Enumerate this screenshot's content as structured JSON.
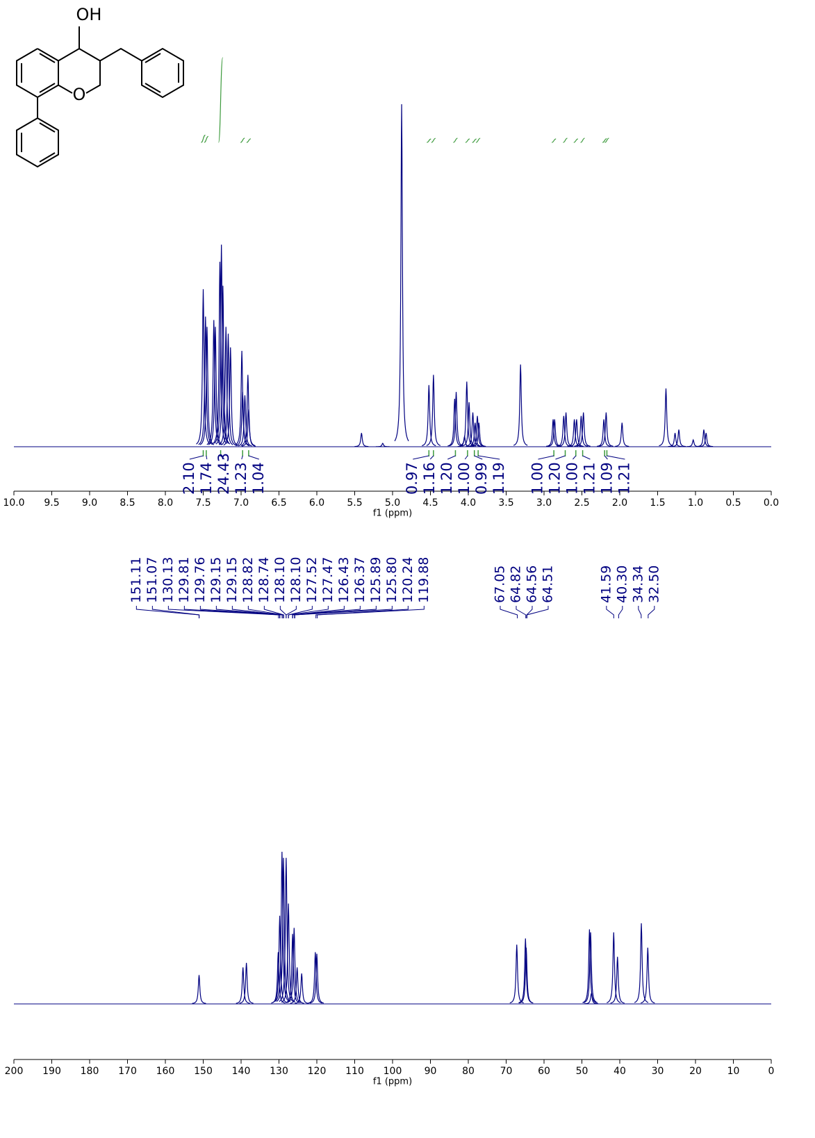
{
  "structure": {
    "hydroxyl": "OH",
    "ring_oxygen": "O"
  },
  "chart_data": [
    {
      "type": "nmr",
      "x_label": "f1 (ppm)",
      "xlim": [
        10,
        0
      ],
      "color": "#000080",
      "xticks": [
        {
          "value": 10,
          "label": "10.0"
        },
        9.5,
        {
          "value": 9,
          "label": "9.0"
        },
        8.5,
        {
          "value": 8,
          "label": "8.0"
        },
        7.5,
        {
          "value": 7,
          "label": "7.0"
        },
        6.5,
        {
          "value": 6,
          "label": "6.0"
        },
        5.5,
        {
          "value": 5,
          "label": "5.0"
        },
        4.5,
        {
          "value": 4,
          "label": "4.0"
        },
        3.5,
        {
          "value": 3,
          "label": "3.0"
        },
        2.5,
        {
          "value": 2,
          "label": "2.0"
        },
        1.5,
        {
          "value": 1,
          "label": "1.0"
        },
        0.5,
        {
          "value": 0,
          "label": "0.0"
        }
      ],
      "peaks": {
        "x": [
          7.5,
          7.47,
          7.45,
          7.36,
          7.34,
          7.28,
          7.26,
          7.24,
          7.2,
          7.17,
          7.14,
          6.99,
          6.98,
          6.95,
          6.91,
          6.9,
          5.41,
          5.13,
          4.88,
          4.52,
          4.46,
          4.18,
          4.16,
          4.05,
          4.02,
          3.99,
          3.94,
          3.91,
          3.88,
          3.86,
          3.31,
          2.88,
          2.86,
          2.74,
          2.71,
          2.6,
          2.57,
          2.51,
          2.48,
          2.21,
          2.18,
          1.97,
          1.39,
          1.27,
          1.22,
          1.03,
          0.89,
          0.86
        ],
        "values": [
          46,
          38,
          35,
          37,
          35,
          54,
          59,
          47,
          35,
          33,
          29,
          28,
          16,
          15,
          21,
          11,
          4,
          1,
          100,
          18,
          21,
          14,
          16,
          3,
          19,
          13,
          10,
          7,
          9,
          7,
          24,
          8,
          8,
          9,
          10,
          8,
          8,
          9,
          10,
          8,
          10,
          7,
          17,
          4,
          5,
          2,
          5,
          4
        ]
      },
      "integrals": {
        "color": "#3c9a3c",
        "x": [
          7.5,
          7.46,
          7.27,
          6.98,
          6.9,
          4.52,
          4.46,
          4.17,
          4.01,
          3.92,
          3.87,
          2.87,
          2.72,
          2.58,
          2.49,
          2.2,
          2.17
        ],
        "values": [
          2.1,
          1.74,
          24.43,
          1.23,
          1.04,
          0.97,
          1.16,
          1.2,
          1,
          0.99,
          1.19,
          1,
          1.2,
          1,
          1.21,
          1.09,
          1.21
        ],
        "value_labels": [
          "2.10",
          "1.74",
          "24.43",
          "1.23",
          "1.04",
          "0.97",
          "1.16",
          "1.20",
          "1.00",
          "0.99",
          "1.19",
          "1.00",
          "1.20",
          "1.00",
          "1.21",
          "1.09",
          "1.21"
        ]
      }
    },
    {
      "type": "nmr",
      "x_label": "f1 (ppm)",
      "xlim": [
        200,
        0
      ],
      "color": "#000080",
      "xticks": [
        200,
        190,
        180,
        170,
        160,
        150,
        140,
        130,
        120,
        110,
        100,
        90,
        80,
        70,
        60,
        50,
        40,
        30,
        20,
        10,
        0
      ],
      "peaks": {
        "x": [
          151.1,
          139.5,
          138.6,
          130.2,
          129.8,
          129.2,
          128.8,
          128.1,
          127.5,
          126.4,
          126.0,
          125.2,
          124.0,
          120.4,
          120.0,
          67.2,
          64.9,
          64.7,
          48.0,
          47.7,
          47.5,
          41.6,
          40.6,
          34.3,
          32.6
        ],
        "values": [
          19,
          24,
          27,
          34,
          58,
          100,
          96,
          96,
          66,
          46,
          50,
          24,
          20,
          34,
          33,
          39,
          43,
          37,
          49,
          47,
          7,
          47,
          31,
          53,
          37
        ]
      },
      "peak_labels": [
        151.11,
        151.07,
        130.13,
        129.81,
        129.76,
        129.15,
        129.15,
        128.82,
        128.74,
        {
          "value": 128.1,
          "label": "128.10"
        },
        {
          "value": 128.1,
          "label": "128.10"
        },
        127.52,
        127.47,
        126.43,
        126.37,
        125.89,
        {
          "value": 125.8,
          "label": "125.80"
        },
        120.24,
        119.88,
        67.05,
        64.82,
        64.56,
        64.51,
        41.59,
        {
          "value": 40.3,
          "label": "40.30"
        },
        34.34,
        {
          "value": 32.5,
          "label": "32.50"
        }
      ]
    }
  ]
}
